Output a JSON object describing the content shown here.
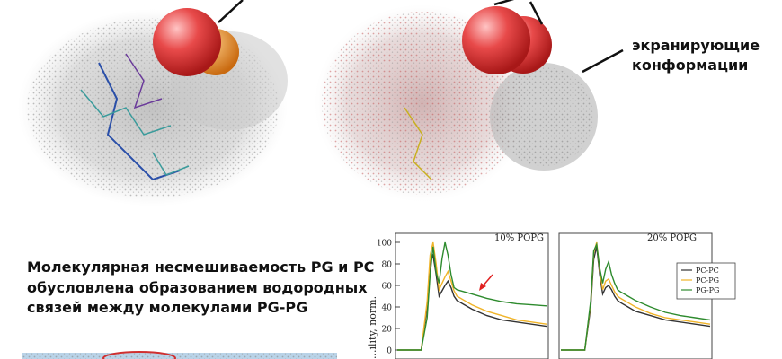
{
  "callout": {
    "line1": "экранирующие",
    "line2": "конформации"
  },
  "caption": {
    "line1": "Молекулярная несмешиваемость PG и PC",
    "line2": "обусловлена образованием водородных",
    "line3": "связей между молекулами PG-PG"
  },
  "colors": {
    "pc_pc": "#333333",
    "pc_pg": "#f0b429",
    "pg_pg": "#2e8b2e",
    "arrow": "#e02020",
    "sphere": "#e04848"
  },
  "chart_data": [
    {
      "type": "line",
      "title": "10% POPG",
      "ylabel": "...ility, norm.",
      "yticks": [
        0,
        20,
        40,
        60,
        80,
        100
      ],
      "ylim": [
        0,
        100
      ],
      "xlim": [
        0,
        100
      ],
      "series": [
        {
          "name": "PC-PC",
          "x": [
            0,
            12,
            16,
            20,
            22,
            24,
            26,
            28,
            30,
            32,
            34,
            36,
            38,
            40,
            45,
            50,
            60,
            70,
            80,
            90,
            100
          ],
          "y": [
            0,
            0,
            0,
            40,
            82,
            88,
            70,
            50,
            55,
            60,
            64,
            58,
            50,
            46,
            42,
            38,
            32,
            28,
            26,
            24,
            22
          ]
        },
        {
          "name": "PC-PG",
          "x": [
            0,
            12,
            16,
            20,
            22,
            24,
            26,
            28,
            30,
            32,
            34,
            36,
            38,
            40,
            45,
            50,
            60,
            70,
            80,
            90,
            100
          ],
          "y": [
            0,
            0,
            0,
            45,
            88,
            100,
            80,
            56,
            62,
            68,
            73,
            64,
            55,
            50,
            46,
            42,
            36,
            32,
            28,
            26,
            24
          ]
        },
        {
          "name": "PG-PG",
          "x": [
            0,
            12,
            16,
            20,
            22,
            24,
            26,
            28,
            30,
            32,
            34,
            36,
            38,
            40,
            45,
            50,
            60,
            70,
            80,
            90,
            100
          ],
          "y": [
            0,
            0,
            0,
            30,
            70,
            96,
            72,
            62,
            85,
            100,
            88,
            70,
            58,
            56,
            54,
            52,
            48,
            45,
            43,
            42,
            41
          ]
        }
      ]
    },
    {
      "type": "line",
      "title": "20% POPG",
      "legend": [
        "PC-PC",
        "PC-PG",
        "PG-PG"
      ],
      "ylim": [
        0,
        100
      ],
      "xlim": [
        0,
        100
      ],
      "series": [
        {
          "name": "PC-PC",
          "x": [
            0,
            12,
            16,
            20,
            22,
            24,
            26,
            28,
            30,
            32,
            34,
            36,
            38,
            40,
            45,
            50,
            60,
            70,
            80,
            90,
            100
          ],
          "y": [
            0,
            0,
            0,
            40,
            84,
            96,
            70,
            52,
            58,
            60,
            56,
            50,
            46,
            44,
            40,
            36,
            32,
            28,
            26,
            24,
            22
          ]
        },
        {
          "name": "PC-PG",
          "x": [
            0,
            12,
            16,
            20,
            22,
            24,
            26,
            28,
            30,
            32,
            34,
            36,
            38,
            40,
            45,
            50,
            60,
            70,
            80,
            90,
            100
          ],
          "y": [
            0,
            0,
            0,
            44,
            90,
            100,
            74,
            56,
            64,
            66,
            60,
            54,
            50,
            48,
            44,
            40,
            34,
            30,
            28,
            26,
            24
          ]
        },
        {
          "name": "PG-PG",
          "x": [
            0,
            12,
            16,
            20,
            22,
            24,
            26,
            28,
            30,
            32,
            34,
            36,
            38,
            40,
            45,
            50,
            60,
            70,
            80,
            90,
            100
          ],
          "y": [
            0,
            0,
            0,
            46,
            92,
            98,
            76,
            62,
            75,
            82,
            70,
            62,
            56,
            54,
            50,
            46,
            40,
            35,
            32,
            30,
            28
          ]
        }
      ]
    }
  ]
}
